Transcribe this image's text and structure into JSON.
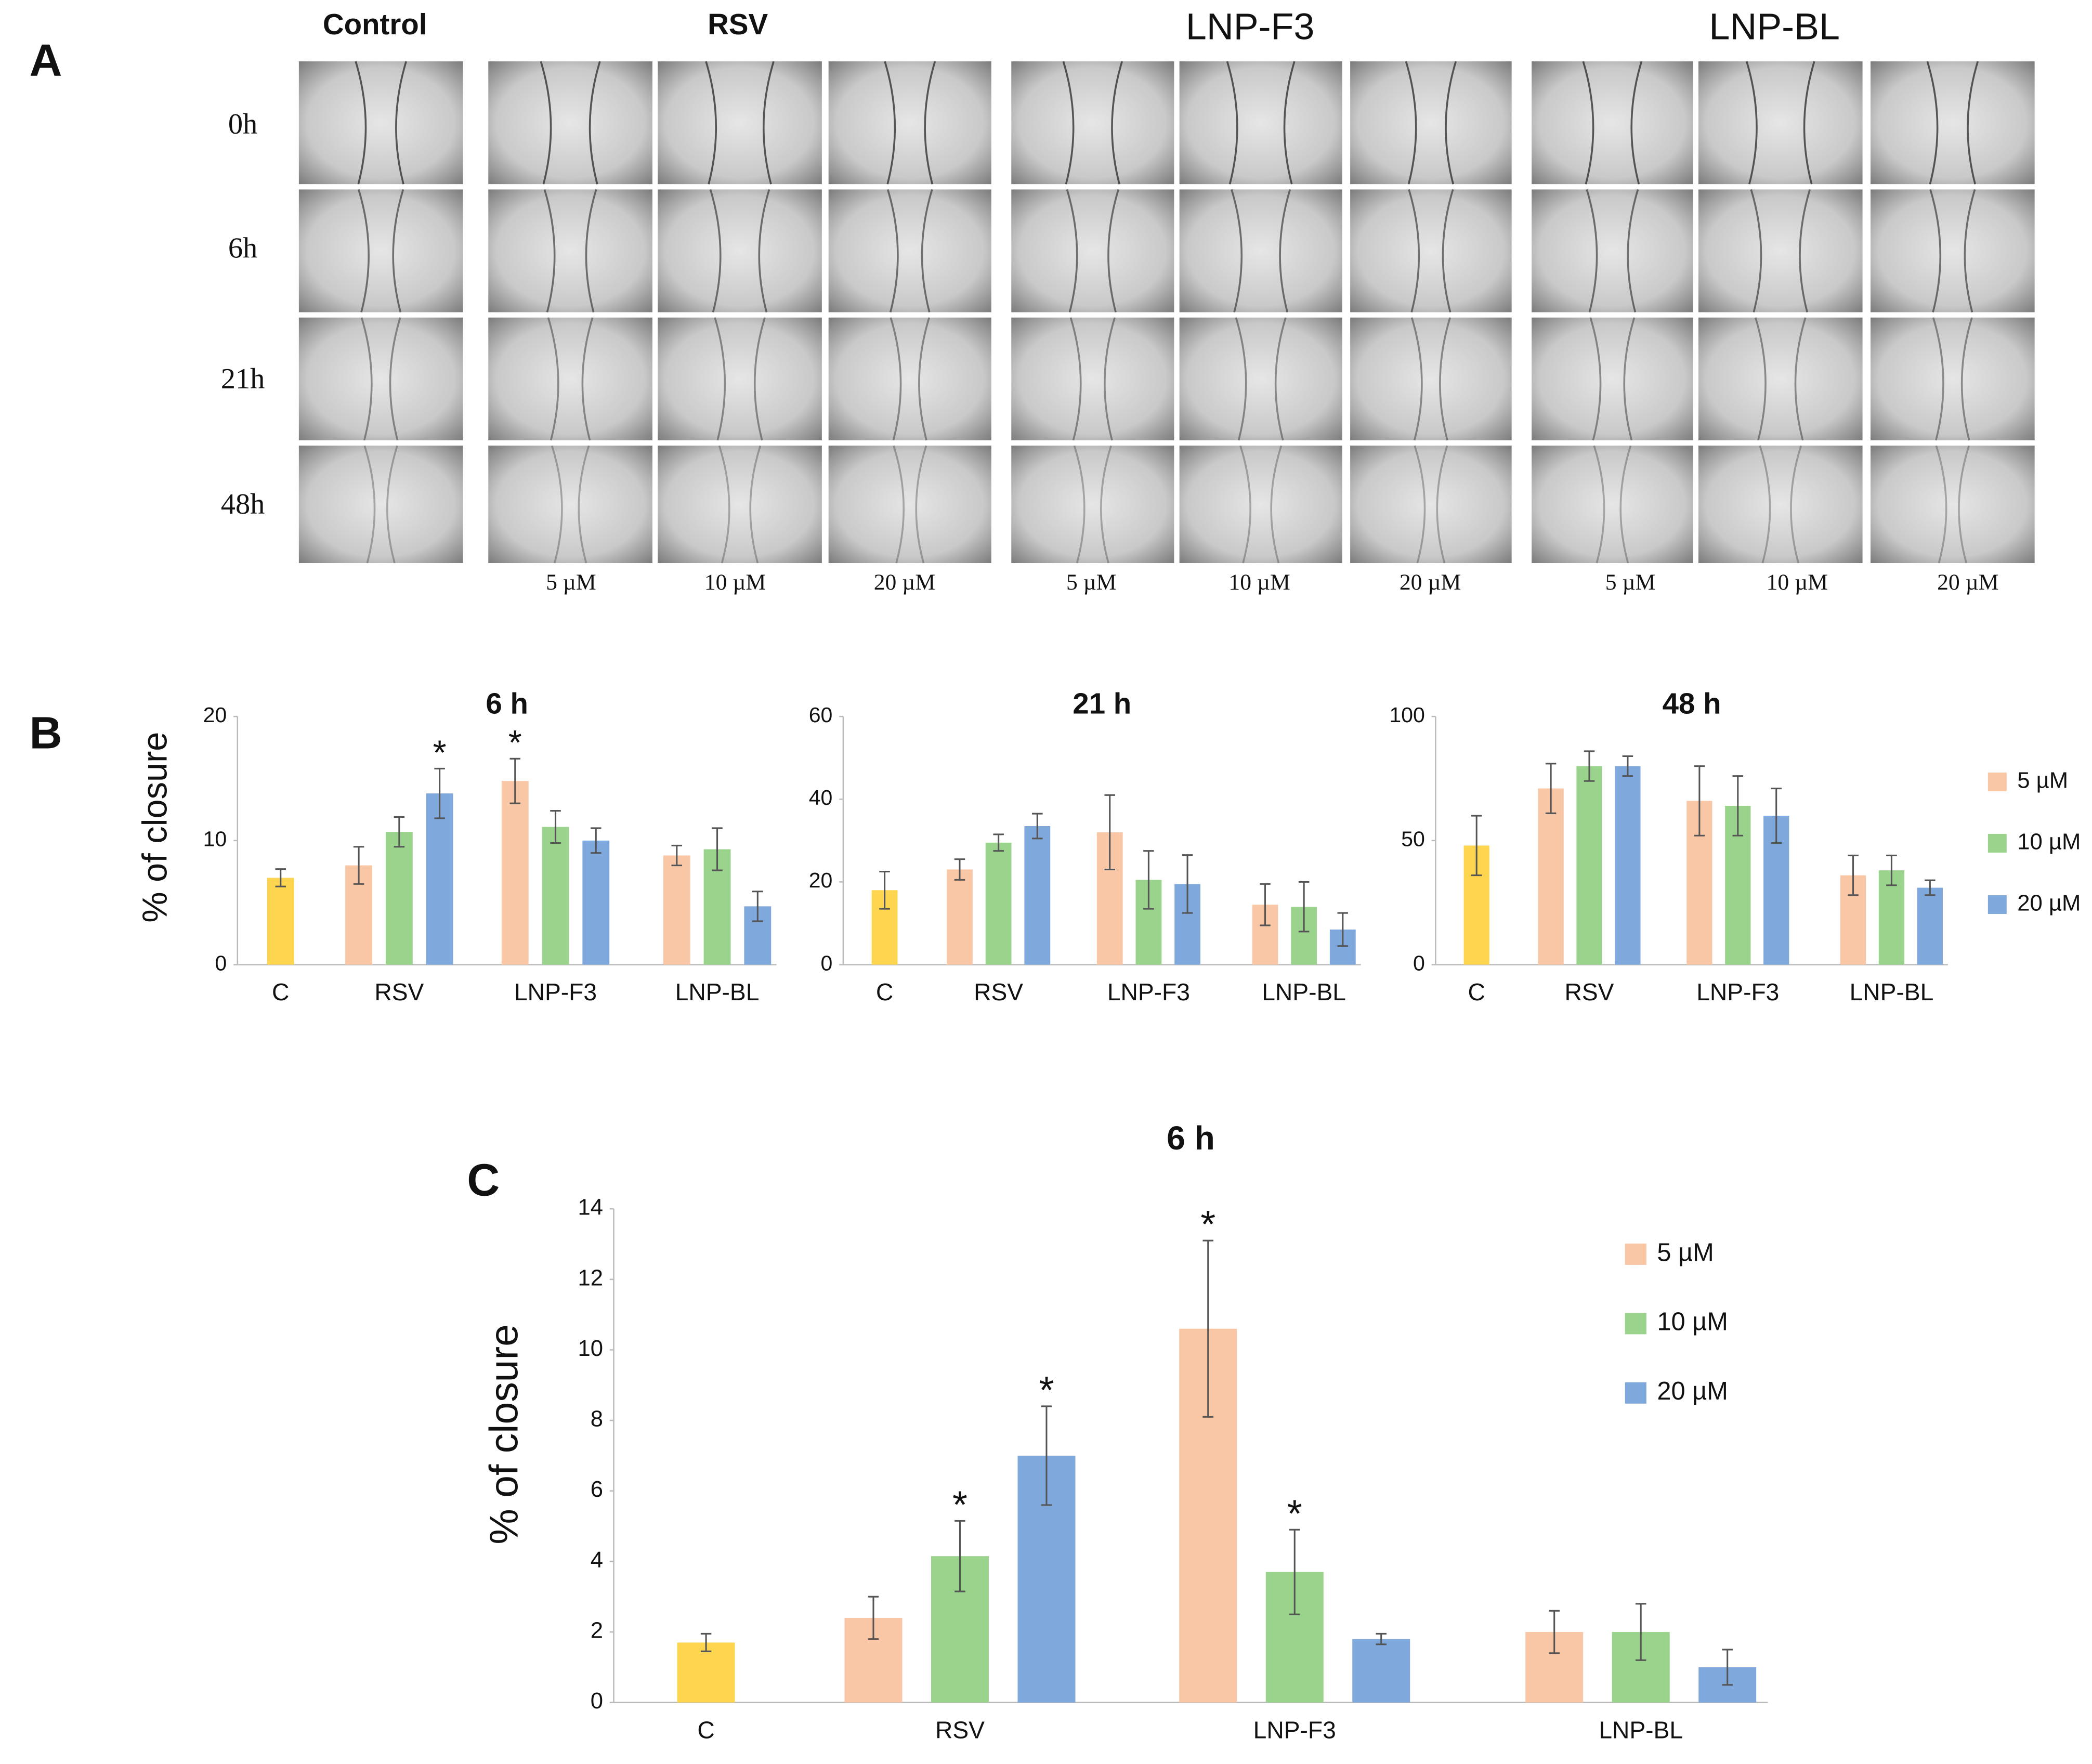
{
  "panel_labels": [
    "A",
    "B",
    "C"
  ],
  "panel_a": {
    "columns": [
      "Control",
      "RSV",
      "LNP-F3",
      "LNP-BL"
    ],
    "rows": [
      "0h",
      "6h",
      "21h",
      "48h"
    ],
    "concentrations": [
      "5 µM",
      "10 µM",
      "20 µM"
    ]
  },
  "chart_data": [
    {
      "type": "bar",
      "title": "6 h",
      "ylabel": "% of closure",
      "categories": [
        "C",
        "RSV",
        "LNP-F3",
        "LNP-BL"
      ],
      "ylim": [
        0,
        20
      ],
      "yticks": [
        0,
        10,
        20
      ],
      "control": {
        "color": "#fdd54e",
        "values": [
          7,
          null,
          null,
          null
        ],
        "errors": [
          0.7,
          null,
          null,
          null
        ]
      },
      "series": [
        {
          "color": "#f9c6a6",
          "values": [
            null,
            8,
            14.8,
            8.8
          ],
          "errors": [
            null,
            1.5,
            1.8,
            0.8
          ]
        },
        {
          "color": "#9ad48c",
          "values": [
            null,
            10.7,
            11.1,
            9.3
          ],
          "errors": [
            null,
            1.2,
            1.3,
            1.7
          ]
        },
        {
          "color": "#7fa8dd",
          "values": [
            null,
            13.8,
            10,
            4.7
          ],
          "errors": [
            null,
            2,
            1,
            1.2
          ]
        }
      ],
      "annotations": [
        {
          "text": "*",
          "series": 2,
          "category": 1
        },
        {
          "text": "*",
          "series": 0,
          "category": 2
        }
      ]
    },
    {
      "type": "bar",
      "title": "21 h",
      "categories": [
        "C",
        "RSV",
        "LNP-F3",
        "LNP-BL"
      ],
      "ylim": [
        0,
        60
      ],
      "yticks": [
        0,
        20,
        40,
        60
      ],
      "control": {
        "color": "#fdd54e",
        "values": [
          18,
          null,
          null,
          null
        ],
        "errors": [
          4.5,
          null,
          null,
          null
        ]
      },
      "series": [
        {
          "color": "#f9c6a6",
          "values": [
            null,
            23,
            32,
            14.5
          ],
          "errors": [
            null,
            2.5,
            9,
            5
          ]
        },
        {
          "color": "#9ad48c",
          "values": [
            null,
            29.5,
            20.5,
            14
          ],
          "errors": [
            null,
            2,
            7,
            6
          ]
        },
        {
          "color": "#7fa8dd",
          "values": [
            null,
            33.5,
            19.5,
            8.5
          ],
          "errors": [
            null,
            3,
            7,
            4
          ]
        }
      ]
    },
    {
      "type": "bar",
      "title": "48 h",
      "categories": [
        "C",
        "RSV",
        "LNP-F3",
        "LNP-BL"
      ],
      "ylim": [
        0,
        100
      ],
      "yticks": [
        0,
        50,
        100
      ],
      "control": {
        "color": "#fdd54e",
        "values": [
          48,
          null,
          null,
          null
        ],
        "errors": [
          12,
          null,
          null,
          null
        ]
      },
      "series": [
        {
          "name": "5 µM",
          "color": "#f9c6a6",
          "values": [
            null,
            71,
            66,
            36
          ],
          "errors": [
            null,
            10,
            14,
            8
          ]
        },
        {
          "name": "10 µM",
          "color": "#9ad48c",
          "values": [
            null,
            80,
            64,
            38
          ],
          "errors": [
            null,
            6,
            12,
            6
          ]
        },
        {
          "name": "20 µM",
          "color": "#7fa8dd",
          "values": [
            null,
            80,
            60,
            31
          ],
          "errors": [
            null,
            4,
            11,
            3
          ]
        }
      ],
      "legend": true
    },
    {
      "type": "bar",
      "title": "6 h",
      "ylabel": "% of closure",
      "categories": [
        "C",
        "RSV",
        "LNP-F3",
        "LNP-BL"
      ],
      "ylim": [
        0,
        14
      ],
      "yticks": [
        0,
        2,
        4,
        6,
        8,
        10,
        12,
        14
      ],
      "control": {
        "color": "#fdd54e",
        "values": [
          1.7,
          null,
          null,
          null
        ],
        "errors": [
          0.25,
          null,
          null,
          null
        ]
      },
      "series": [
        {
          "name": "5 µM",
          "color": "#f9c6a6",
          "values": [
            null,
            2.4,
            10.6,
            2
          ],
          "errors": [
            null,
            0.6,
            2.5,
            0.6
          ]
        },
        {
          "name": "10 µM",
          "color": "#9ad48c",
          "values": [
            null,
            4.15,
            3.7,
            2
          ],
          "errors": [
            null,
            1,
            1.2,
            0.8
          ]
        },
        {
          "name": "20 µM",
          "color": "#7fa8dd",
          "values": [
            null,
            7,
            1.8,
            1
          ],
          "errors": [
            null,
            1.4,
            0.15,
            0.5
          ]
        }
      ],
      "annotations": [
        {
          "text": "*",
          "series": 1,
          "category": 1
        },
        {
          "text": "*",
          "series": 2,
          "category": 1
        },
        {
          "text": "*",
          "series": 0,
          "category": 2
        },
        {
          "text": "*",
          "series": 1,
          "category": 2
        }
      ],
      "legend": true
    }
  ]
}
